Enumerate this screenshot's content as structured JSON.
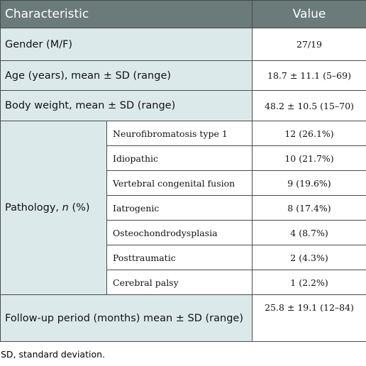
{
  "table": {
    "header": [
      "Characteristic",
      "Value"
    ],
    "rows": [
      {
        "label": "Gender (M/F)",
        "value": "27/19"
      },
      {
        "label": "Age (years), mean ± SD (range)",
        "value": "18.7 ± 11.1 (5–69)"
      },
      {
        "label": "Body weight, mean ± SD (range)",
        "value": "48.2 ± 10.5 (15–70)"
      },
      {
        "label": [
          "Pathology, ",
          "n",
          " (%)"
        ],
        "subrows": [
          {
            "label": "Neurofibromatosis type 1",
            "value": "12 (26.1%)"
          },
          {
            "label": "Idiopathic",
            "value": "10 (21.7%)"
          },
          {
            "label": "Vertebral congenital fusion",
            "value": "9 (19.6%)"
          },
          {
            "label": "Iatrogenic",
            "value": "8 (17.4%)"
          },
          {
            "label": "Osteochondrodysplasia",
            "value": "4 (8.7%)"
          },
          {
            "label": "Posttraumatic",
            "value": "2 (4.3%)"
          },
          {
            "label": "Cerebral palsy",
            "value": "1 (2.2%)"
          }
        ]
      },
      {
        "label": "Follow-up period (months) mean ± SD (range)",
        "value": "25.8 ± 19.1 (12–84)"
      }
    ]
  },
  "footnote": "SD, standard deviation."
}
